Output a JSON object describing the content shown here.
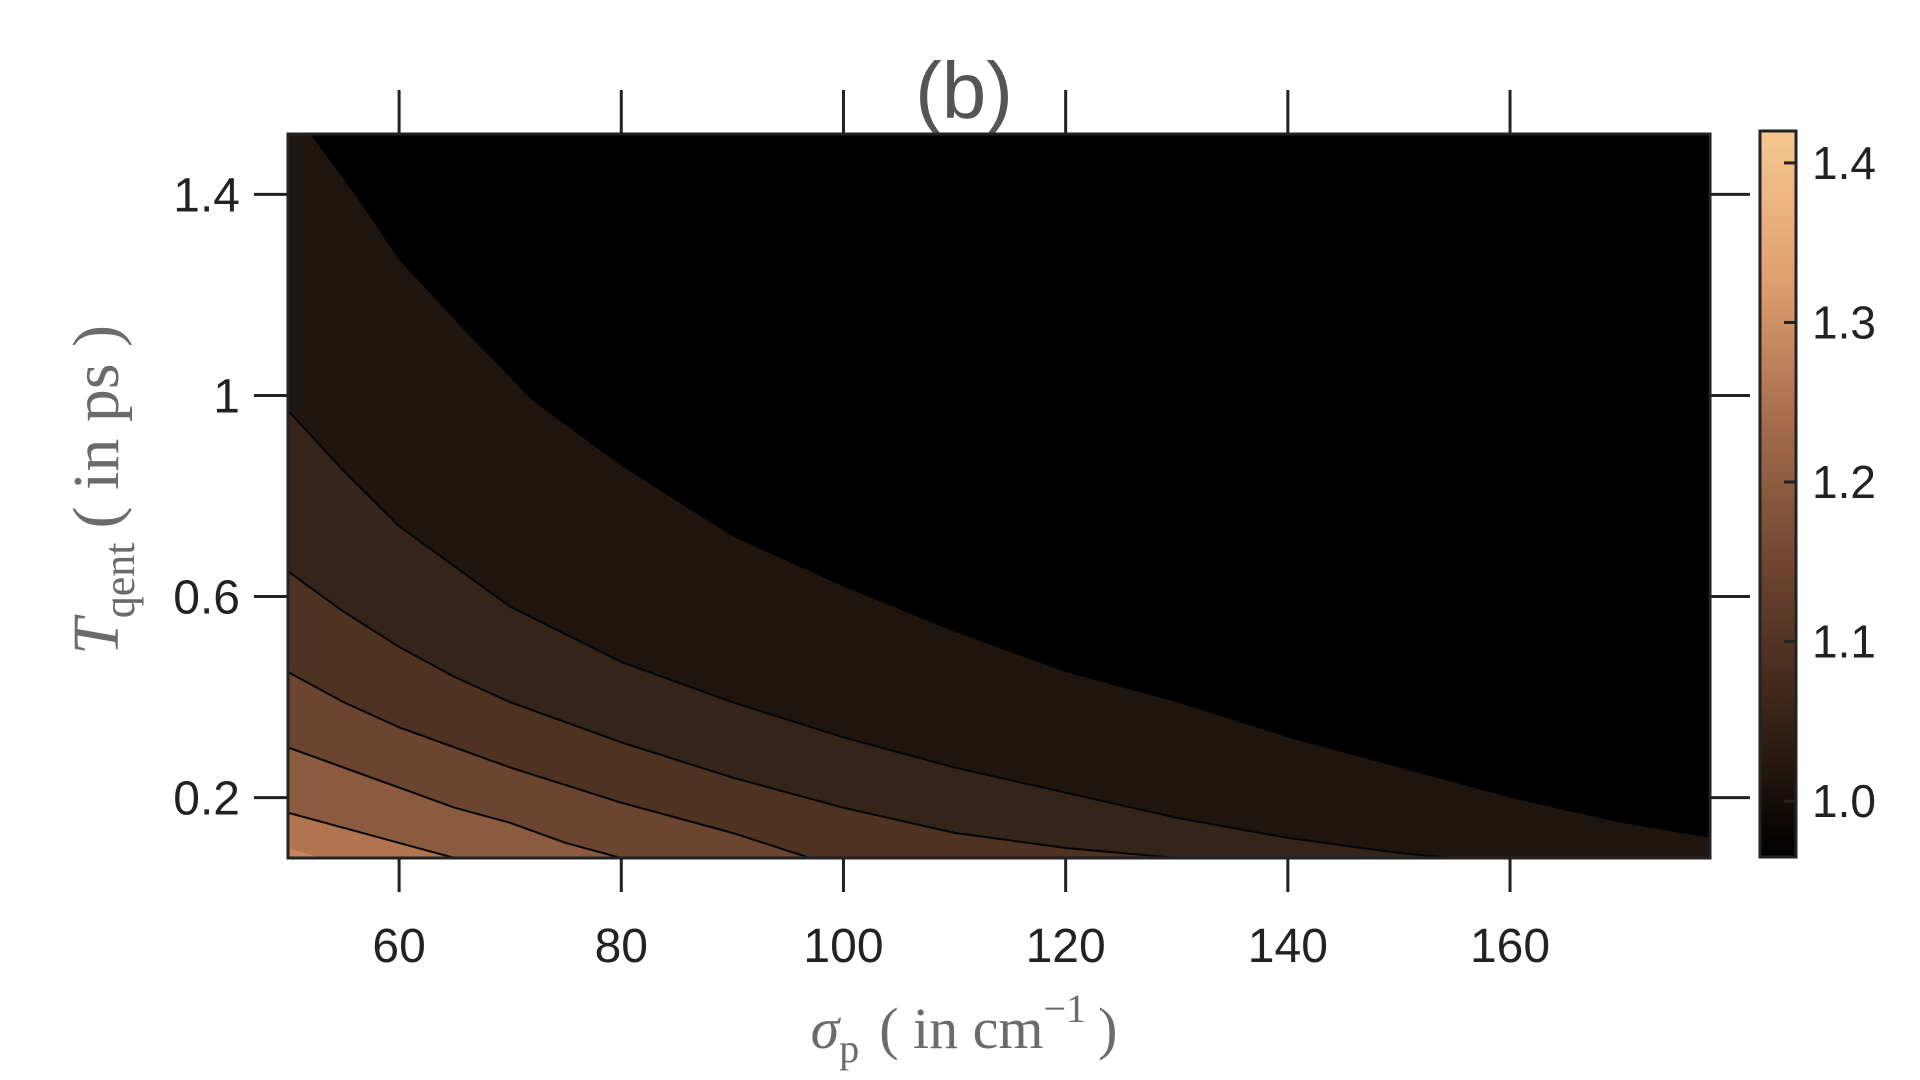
{
  "chart_data": {
    "type": "heatmap",
    "subtype": "filled-contour",
    "title": "(b)",
    "xlabel": {
      "symbol": "σ",
      "subscript": "p",
      "unit_open": "( in cm",
      "unit_superscript": "−1",
      "unit_close": ")"
    },
    "ylabel": {
      "symbol": "T",
      "subscript": "qent",
      "unit": "( in ps )"
    },
    "xlim": [
      50,
      178
    ],
    "ylim": [
      0.08,
      1.52
    ],
    "x_ticks": [
      60,
      80,
      100,
      120,
      140,
      160
    ],
    "x_tick_labels": [
      "60",
      "80",
      "100",
      "120",
      "140",
      "160"
    ],
    "y_ticks": [
      0.2,
      0.6,
      1.0,
      1.4
    ],
    "y_tick_labels": [
      "0.2",
      "0.6",
      "1",
      "1.4"
    ],
    "colorbar": {
      "range": [
        0.965,
        1.42
      ],
      "ticks": [
        1.0,
        1.1,
        1.2,
        1.3,
        1.4
      ],
      "tick_labels": [
        "1.0",
        "1.1",
        "1.2",
        "1.3",
        "1.4"
      ],
      "colormap": [
        "#000000",
        "#3a2418",
        "#6e4530",
        "#a66d4c",
        "#e0a070",
        "#f6c88f"
      ]
    },
    "contour_levels": [
      {
        "level": 1.0,
        "fill": "#1e150e",
        "line": false,
        "points": [
          [
            52,
            1.52
          ],
          [
            56,
            1.4
          ],
          [
            60,
            1.27
          ],
          [
            65,
            1.15
          ],
          [
            72,
            0.99
          ],
          [
            80,
            0.86
          ],
          [
            90,
            0.72
          ],
          [
            100,
            0.62
          ],
          [
            110,
            0.53
          ],
          [
            120,
            0.45
          ],
          [
            130,
            0.39
          ],
          [
            140,
            0.32
          ],
          [
            150,
            0.26
          ],
          [
            160,
            0.2
          ],
          [
            170,
            0.15
          ],
          [
            178,
            0.12
          ]
        ]
      },
      {
        "level": 1.05,
        "fill": "#34241a",
        "line": true,
        "points": [
          [
            50,
            0.97
          ],
          [
            55,
            0.85
          ],
          [
            60,
            0.74
          ],
          [
            65,
            0.66
          ],
          [
            70,
            0.58
          ],
          [
            80,
            0.47
          ],
          [
            90,
            0.39
          ],
          [
            100,
            0.32
          ],
          [
            110,
            0.26
          ],
          [
            120,
            0.21
          ],
          [
            130,
            0.16
          ],
          [
            140,
            0.12
          ],
          [
            150,
            0.09
          ],
          [
            155,
            0.08
          ]
        ]
      },
      {
        "level": 1.1,
        "fill": "#4f3322",
        "line": true,
        "points": [
          [
            50,
            0.65
          ],
          [
            55,
            0.57
          ],
          [
            60,
            0.5
          ],
          [
            65,
            0.44
          ],
          [
            70,
            0.39
          ],
          [
            80,
            0.31
          ],
          [
            90,
            0.24
          ],
          [
            100,
            0.18
          ],
          [
            110,
            0.13
          ],
          [
            120,
            0.1
          ],
          [
            130,
            0.08
          ]
        ]
      },
      {
        "level": 1.15,
        "fill": "#6b4530",
        "line": true,
        "points": [
          [
            50,
            0.45
          ],
          [
            55,
            0.39
          ],
          [
            60,
            0.34
          ],
          [
            65,
            0.3
          ],
          [
            70,
            0.26
          ],
          [
            80,
            0.19
          ],
          [
            90,
            0.13
          ],
          [
            97,
            0.08
          ]
        ]
      },
      {
        "level": 1.2,
        "fill": "#8c5a3e",
        "line": true,
        "points": [
          [
            50,
            0.3
          ],
          [
            55,
            0.26
          ],
          [
            60,
            0.22
          ],
          [
            65,
            0.18
          ],
          [
            70,
            0.15
          ],
          [
            75,
            0.11
          ],
          [
            80,
            0.08
          ]
        ]
      },
      {
        "level": 1.25,
        "fill": "#b0744f",
        "line": true,
        "points": [
          [
            50,
            0.17
          ],
          [
            55,
            0.14
          ],
          [
            60,
            0.11
          ],
          [
            65,
            0.08
          ]
        ]
      },
      {
        "level": 1.3,
        "fill": "#c9865c",
        "line": false,
        "points": [
          [
            50,
            0.1
          ],
          [
            53,
            0.08
          ]
        ]
      }
    ],
    "background_level": {
      "level": 0.97,
      "fill": "#000000"
    }
  }
}
